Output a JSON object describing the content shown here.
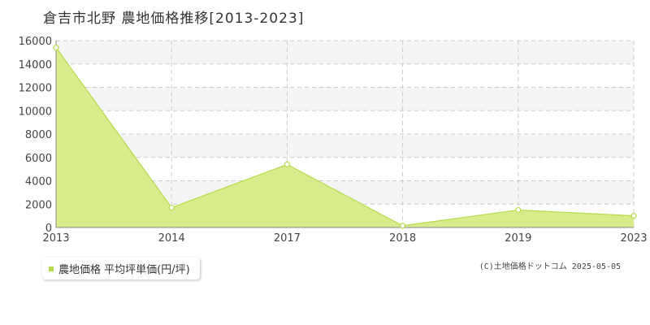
{
  "title": "倉吉市北野 農地価格推移[2013-2023]",
  "legend": {
    "label": "農地価格 平均坪単価(円/坪)"
  },
  "copyright": "(C)土地価格ドットコム 2025-05-05",
  "colors": {
    "series_fill": "#d9ec8c",
    "series_line": "#b6db4a",
    "marker_fill": "#ffffff",
    "grid": "#cccccc",
    "band": "#f5f5f5",
    "legend_marker": "#b6db4a"
  },
  "chart_data": {
    "type": "area",
    "categories": [
      "2013",
      "2014",
      "2017",
      "2018",
      "2019",
      "2023"
    ],
    "series": [
      {
        "name": "農地価格 平均坪単価(円/坪)",
        "values": [
          15400,
          1700,
          5400,
          150,
          1500,
          1000
        ]
      }
    ],
    "y_ticks": [
      "0",
      "2000",
      "4000",
      "6000",
      "8000",
      "10000",
      "12000",
      "14000",
      "16000"
    ],
    "ylim": [
      0,
      16000
    ],
    "grid": true,
    "legend_position": "bottom-left"
  }
}
